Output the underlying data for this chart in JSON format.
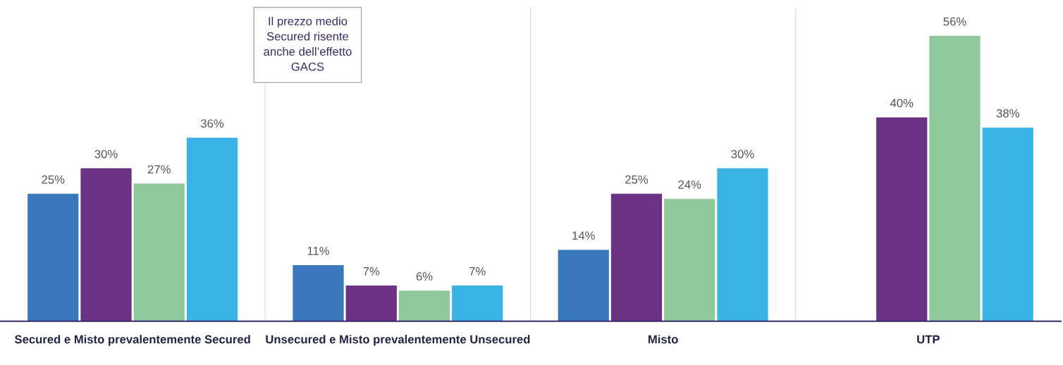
{
  "chart_data": {
    "type": "bar",
    "categories": [
      "Secured e Misto prevalentemente Secured",
      "Unsecured e Misto prevalentemente Unsecured",
      "Misto",
      "UTP"
    ],
    "series": [
      {
        "color": "#3a78bd",
        "values": [
          25,
          11,
          14,
          null
        ],
        "value_labels": [
          "25%",
          "11%",
          "14%",
          null
        ]
      },
      {
        "color": "#6b3182",
        "values": [
          30,
          7,
          25,
          40
        ],
        "value_labels": [
          "30%",
          "7%",
          "25%",
          "40%"
        ]
      },
      {
        "color": "#8fc89a",
        "values": [
          27,
          6,
          24,
          56
        ],
        "value_labels": [
          "27%",
          "6%",
          "24%",
          "56%"
        ]
      },
      {
        "color": "#3ab4e6",
        "values": [
          36,
          7,
          30,
          38
        ],
        "value_labels": [
          "36%",
          "7%",
          "30%",
          "38%"
        ]
      }
    ],
    "annotations": [
      "Il prezzo medio\nSecured risente\nanche dell’effetto\nGACS"
    ],
    "grid": false,
    "legend": false
  }
}
